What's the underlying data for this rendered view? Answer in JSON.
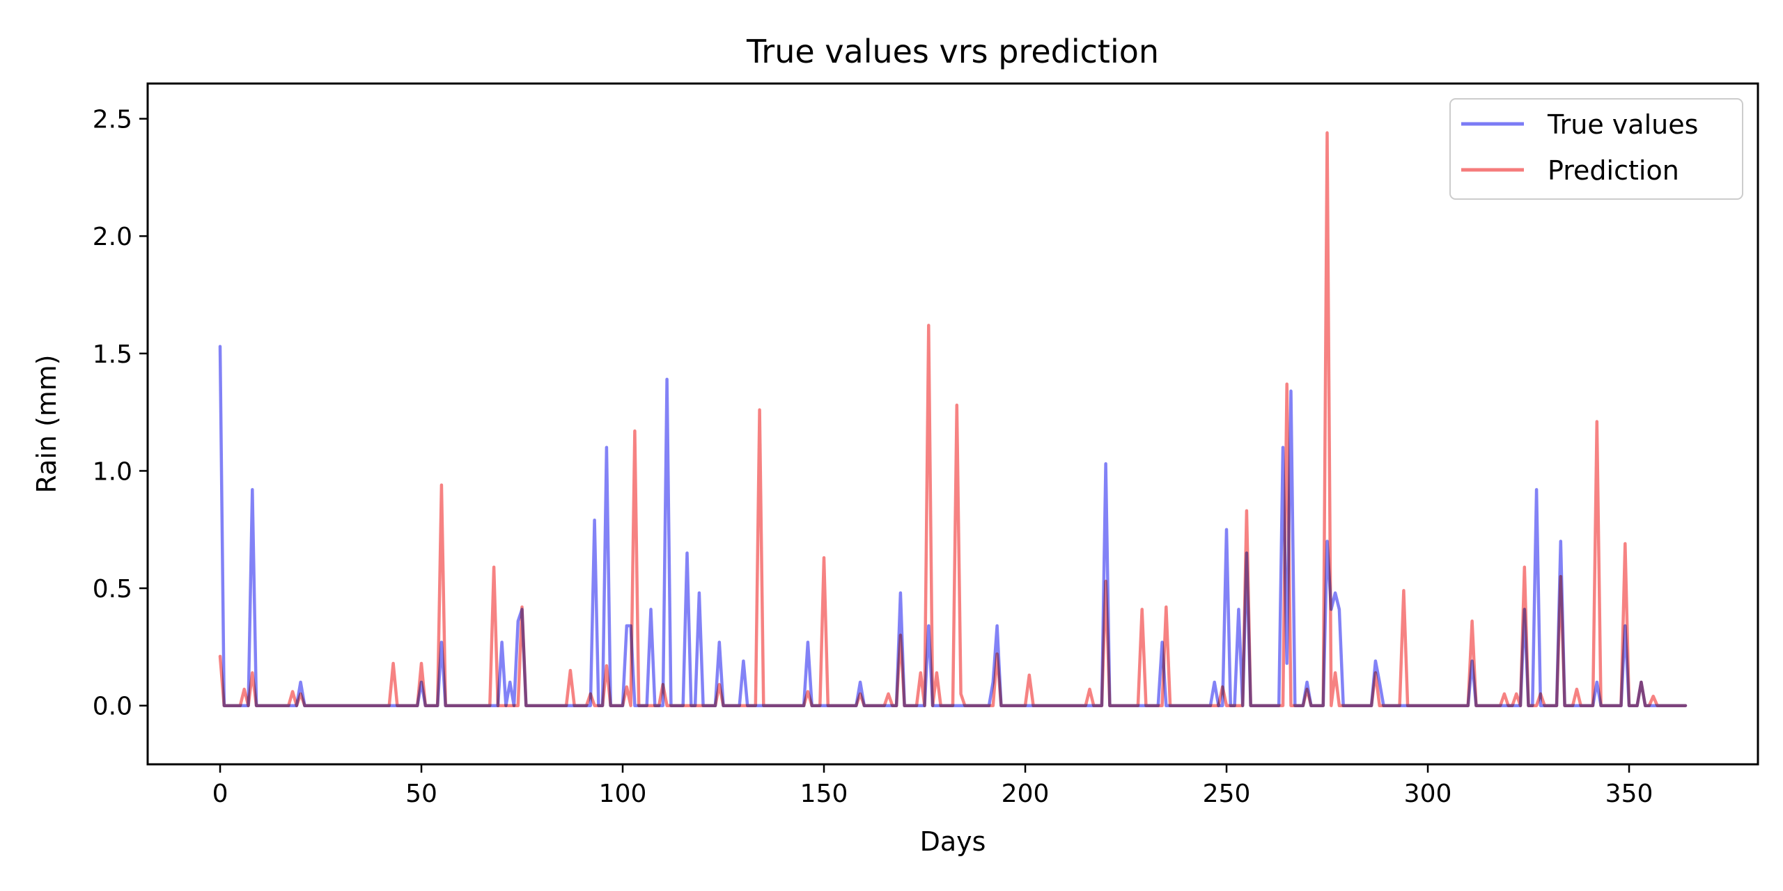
{
  "chart_data": {
    "type": "line",
    "title": "True values vrs prediction",
    "xlabel": "Days",
    "ylabel": "Rain (mm)",
    "xlim": [
      -18,
      382
    ],
    "ylim": [
      -0.25,
      2.65
    ],
    "xticks": [
      0,
      50,
      100,
      150,
      200,
      250,
      300,
      350
    ],
    "yticks": [
      0.0,
      0.5,
      1.0,
      1.5,
      2.0,
      2.5
    ],
    "xtick_labels": [
      "0",
      "50",
      "100",
      "150",
      "200",
      "250",
      "300",
      "350"
    ],
    "ytick_labels": [
      "0.0",
      "0.5",
      "1.0",
      "1.5",
      "2.0",
      "2.5"
    ],
    "grid": false,
    "legend": {
      "position": "top-right",
      "labels": [
        "True values",
        "Prediction"
      ]
    },
    "series": [
      {
        "name": "True values",
        "color": "#7b7bf5",
        "points": [
          [
            0,
            1.53
          ],
          [
            1,
            0
          ],
          [
            7,
            0
          ],
          [
            8,
            0.92
          ],
          [
            9,
            0
          ],
          [
            19,
            0
          ],
          [
            20,
            0.1
          ],
          [
            21,
            0
          ],
          [
            49,
            0
          ],
          [
            50,
            0.1
          ],
          [
            51,
            0
          ],
          [
            54,
            0
          ],
          [
            55,
            0.27
          ],
          [
            56,
            0
          ],
          [
            69,
            0
          ],
          [
            70,
            0.27
          ],
          [
            71,
            0
          ],
          [
            72,
            0.1
          ],
          [
            73,
            0
          ],
          [
            74,
            0.36
          ],
          [
            75,
            0.41
          ],
          [
            76,
            0
          ],
          [
            92,
            0
          ],
          [
            93,
            0.79
          ],
          [
            94,
            0
          ],
          [
            95,
            0
          ],
          [
            96,
            1.1
          ],
          [
            97,
            0
          ],
          [
            100,
            0
          ],
          [
            101,
            0.34
          ],
          [
            102,
            0.34
          ],
          [
            103,
            0
          ],
          [
            106,
            0
          ],
          [
            107,
            0.41
          ],
          [
            108,
            0
          ],
          [
            110,
            0
          ],
          [
            111,
            1.39
          ],
          [
            112,
            0
          ],
          [
            115,
            0
          ],
          [
            116,
            0.65
          ],
          [
            117,
            0
          ],
          [
            118,
            0
          ],
          [
            119,
            0.48
          ],
          [
            120,
            0
          ],
          [
            123,
            0
          ],
          [
            124,
            0.27
          ],
          [
            125,
            0
          ],
          [
            129,
            0
          ],
          [
            130,
            0.19
          ],
          [
            131,
            0
          ],
          [
            145,
            0
          ],
          [
            146,
            0.27
          ],
          [
            147,
            0
          ],
          [
            158,
            0
          ],
          [
            159,
            0.1
          ],
          [
            160,
            0
          ],
          [
            168,
            0
          ],
          [
            169,
            0.48
          ],
          [
            170,
            0
          ],
          [
            175,
            0
          ],
          [
            176,
            0.34
          ],
          [
            177,
            0
          ],
          [
            191,
            0
          ],
          [
            192,
            0.1
          ],
          [
            193,
            0.34
          ],
          [
            194,
            0
          ],
          [
            219,
            0
          ],
          [
            220,
            1.03
          ],
          [
            221,
            0
          ],
          [
            233,
            0
          ],
          [
            234,
            0.27
          ],
          [
            235,
            0
          ],
          [
            246,
            0
          ],
          [
            247,
            0.1
          ],
          [
            248,
            0
          ],
          [
            249,
            0
          ],
          [
            250,
            0.75
          ],
          [
            251,
            0
          ],
          [
            252,
            0
          ],
          [
            253,
            0.41
          ],
          [
            254,
            0
          ],
          [
            255,
            0.65
          ],
          [
            256,
            0
          ],
          [
            263,
            0
          ],
          [
            264,
            1.1
          ],
          [
            265,
            0.18
          ],
          [
            266,
            1.34
          ],
          [
            267,
            0
          ],
          [
            269,
            0
          ],
          [
            270,
            0.1
          ],
          [
            271,
            0
          ],
          [
            274,
            0
          ],
          [
            275,
            0.7
          ],
          [
            276,
            0.41
          ],
          [
            277,
            0.48
          ],
          [
            278,
            0.41
          ],
          [
            279,
            0
          ],
          [
            286,
            0
          ],
          [
            287,
            0.19
          ],
          [
            288,
            0.1
          ],
          [
            289,
            0
          ],
          [
            310,
            0
          ],
          [
            311,
            0.19
          ],
          [
            312,
            0
          ],
          [
            323,
            0
          ],
          [
            324,
            0.41
          ],
          [
            325,
            0
          ],
          [
            326,
            0
          ],
          [
            327,
            0.92
          ],
          [
            328,
            0
          ],
          [
            332,
            0
          ],
          [
            333,
            0.7
          ],
          [
            334,
            0
          ],
          [
            341,
            0
          ],
          [
            342,
            0.1
          ],
          [
            343,
            0
          ],
          [
            348,
            0
          ],
          [
            349,
            0.34
          ],
          [
            350,
            0
          ],
          [
            352,
            0
          ],
          [
            353,
            0.1
          ],
          [
            354,
            0
          ],
          [
            364,
            0
          ]
        ]
      },
      {
        "name": "Prediction",
        "color": "#f57b7b",
        "points": [
          [
            0,
            0.21
          ],
          [
            1,
            0
          ],
          [
            5,
            0
          ],
          [
            6,
            0.07
          ],
          [
            7,
            0
          ],
          [
            8,
            0.14
          ],
          [
            9,
            0
          ],
          [
            17,
            0
          ],
          [
            18,
            0.06
          ],
          [
            19,
            0
          ],
          [
            20,
            0.05
          ],
          [
            21,
            0
          ],
          [
            42,
            0
          ],
          [
            43,
            0.18
          ],
          [
            44,
            0
          ],
          [
            49,
            0
          ],
          [
            50,
            0.18
          ],
          [
            51,
            0
          ],
          [
            54,
            0
          ],
          [
            55,
            0.94
          ],
          [
            56,
            0
          ],
          [
            67,
            0
          ],
          [
            68,
            0.59
          ],
          [
            69,
            0
          ],
          [
            74,
            0
          ],
          [
            75,
            0.42
          ],
          [
            76,
            0
          ],
          [
            86,
            0
          ],
          [
            87,
            0.15
          ],
          [
            88,
            0
          ],
          [
            91,
            0
          ],
          [
            92,
            0.05
          ],
          [
            93,
            0
          ],
          [
            95,
            0
          ],
          [
            96,
            0.17
          ],
          [
            97,
            0
          ],
          [
            100,
            0
          ],
          [
            101,
            0.08
          ],
          [
            102,
            0
          ],
          [
            103,
            1.17
          ],
          [
            104,
            0
          ],
          [
            109,
            0
          ],
          [
            110,
            0.09
          ],
          [
            111,
            0
          ],
          [
            123,
            0
          ],
          [
            124,
            0.09
          ],
          [
            125,
            0
          ],
          [
            133,
            0
          ],
          [
            134,
            1.26
          ],
          [
            135,
            0
          ],
          [
            145,
            0
          ],
          [
            146,
            0.06
          ],
          [
            147,
            0
          ],
          [
            149,
            0
          ],
          [
            150,
            0.63
          ],
          [
            151,
            0
          ],
          [
            158,
            0
          ],
          [
            159,
            0.05
          ],
          [
            160,
            0
          ],
          [
            165,
            0
          ],
          [
            166,
            0.05
          ],
          [
            167,
            0
          ],
          [
            168,
            0
          ],
          [
            169,
            0.3
          ],
          [
            170,
            0
          ],
          [
            173,
            0
          ],
          [
            174,
            0.14
          ],
          [
            175,
            0
          ],
          [
            176,
            1.62
          ],
          [
            177,
            0
          ],
          [
            178,
            0.14
          ],
          [
            179,
            0
          ],
          [
            182,
            0
          ],
          [
            183,
            1.28
          ],
          [
            184,
            0.05
          ],
          [
            185,
            0
          ],
          [
            192,
            0
          ],
          [
            193,
            0.22
          ],
          [
            194,
            0
          ],
          [
            200,
            0
          ],
          [
            201,
            0.13
          ],
          [
            202,
            0
          ],
          [
            215,
            0
          ],
          [
            216,
            0.07
          ],
          [
            217,
            0
          ],
          [
            219,
            0
          ],
          [
            220,
            0.53
          ],
          [
            221,
            0
          ],
          [
            228,
            0
          ],
          [
            229,
            0.41
          ],
          [
            230,
            0
          ],
          [
            234,
            0
          ],
          [
            235,
            0.42
          ],
          [
            236,
            0
          ],
          [
            248,
            0
          ],
          [
            249,
            0.08
          ],
          [
            250,
            0
          ],
          [
            254,
            0
          ],
          [
            255,
            0.83
          ],
          [
            256,
            0
          ],
          [
            264,
            0
          ],
          [
            265,
            1.37
          ],
          [
            266,
            0
          ],
          [
            269,
            0
          ],
          [
            270,
            0.07
          ],
          [
            271,
            0
          ],
          [
            274,
            0
          ],
          [
            275,
            2.44
          ],
          [
            276,
            0
          ],
          [
            277,
            0.14
          ],
          [
            278,
            0
          ],
          [
            286,
            0
          ],
          [
            287,
            0.14
          ],
          [
            288,
            0
          ],
          [
            293,
            0
          ],
          [
            294,
            0.49
          ],
          [
            295,
            0
          ],
          [
            310,
            0
          ],
          [
            311,
            0.36
          ],
          [
            312,
            0
          ],
          [
            318,
            0
          ],
          [
            319,
            0.05
          ],
          [
            320,
            0
          ],
          [
            321,
            0
          ],
          [
            322,
            0.05
          ],
          [
            323,
            0
          ],
          [
            324,
            0.59
          ],
          [
            325,
            0
          ],
          [
            327,
            0
          ],
          [
            328,
            0.05
          ],
          [
            329,
            0
          ],
          [
            332,
            0
          ],
          [
            333,
            0.55
          ],
          [
            334,
            0
          ],
          [
            336,
            0
          ],
          [
            337,
            0.07
          ],
          [
            338,
            0
          ],
          [
            341,
            0
          ],
          [
            342,
            1.21
          ],
          [
            343,
            0
          ],
          [
            348,
            0
          ],
          [
            349,
            0.69
          ],
          [
            350,
            0
          ],
          [
            352,
            0
          ],
          [
            353,
            0.1
          ],
          [
            354,
            0
          ],
          [
            355,
            0
          ],
          [
            356,
            0.04
          ],
          [
            357,
            0
          ],
          [
            364,
            0
          ]
        ]
      }
    ]
  }
}
